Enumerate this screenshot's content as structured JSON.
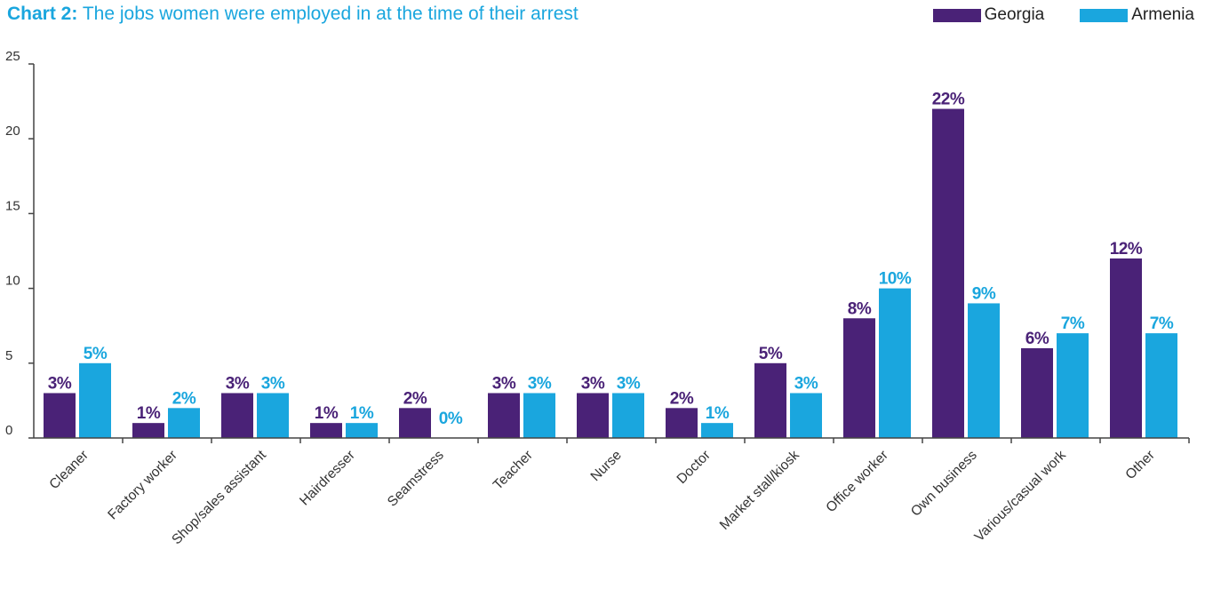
{
  "header": {
    "title_prefix": "Chart 2:",
    "title_text": "The jobs women were employed in at the time of their arrest"
  },
  "colors": {
    "georgia": "#4a2277",
    "armenia": "#1aa6de",
    "axis": "#444444",
    "title": "#1aa6de"
  },
  "chart_data": {
    "type": "bar",
    "title": "Chart 2: The jobs women were employed in at the time of their arrest",
    "categories": [
      "Cleaner",
      "Factory worker",
      "Shop/sales assistant",
      "Hairdresser",
      "Seamstress",
      "Teacher",
      "Nurse",
      "Doctor",
      "Market stall/kiosk",
      "Office worker",
      "Own business",
      "Various/casual work",
      "Other"
    ],
    "series": [
      {
        "name": "Georgia",
        "values": [
          3,
          1,
          3,
          1,
          2,
          3,
          3,
          2,
          5,
          8,
          22,
          6,
          12
        ],
        "labels": [
          "3%",
          "1%",
          "3%",
          "1%",
          "2%",
          "3%",
          "3%",
          "2%",
          "5%",
          "8%",
          "22%",
          "6%",
          "12%"
        ]
      },
      {
        "name": "Armenia",
        "values": [
          5,
          2,
          3,
          1,
          0,
          3,
          3,
          1,
          3,
          10,
          9,
          7,
          7
        ],
        "labels": [
          "5%",
          "2%",
          "3%",
          "1%",
          "0%",
          "3%",
          "3%",
          "1%",
          "3%",
          "10%",
          "9%",
          "7%",
          "7%"
        ]
      }
    ],
    "yticks": [
      "0",
      "5",
      "10",
      "15",
      "20",
      "25"
    ],
    "ylim": [
      0,
      25
    ],
    "legend_position": "top-right",
    "grid": false
  }
}
